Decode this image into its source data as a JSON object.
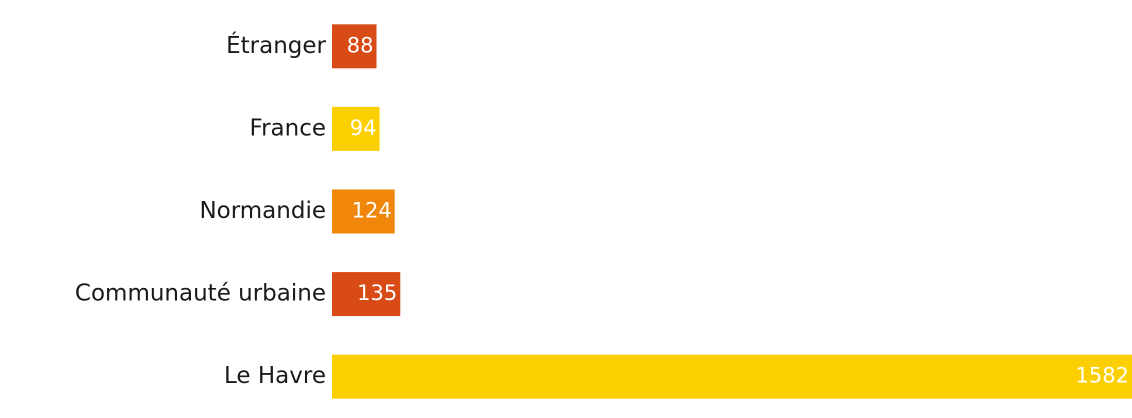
{
  "chart_data": {
    "type": "bar",
    "orientation": "horizontal",
    "categories": [
      "Étranger",
      "France",
      "Normandie",
      "Communauté urbaine",
      "Le Havre"
    ],
    "values": [
      88,
      94,
      124,
      135,
      1582
    ],
    "colors": [
      "#d84b16",
      "#fcd000",
      "#f0860a",
      "#d84b16",
      "#fcd000"
    ]
  }
}
